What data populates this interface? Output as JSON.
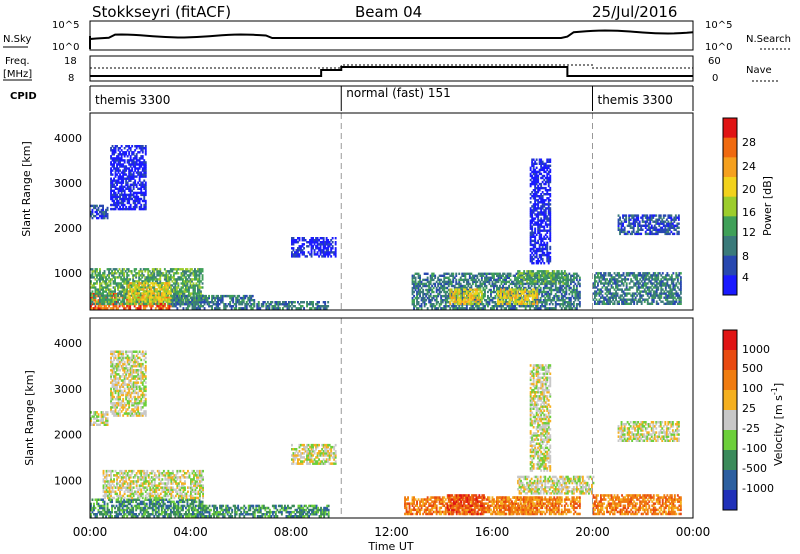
{
  "header": {
    "station": "Stokkseyri (fitACF)",
    "beam": "Beam 04",
    "date": "25/Jul/2016"
  },
  "noise_panel": {
    "left_label": "N.Sky",
    "right_label": "N.Search",
    "left_ticks": [
      "10^5",
      "10^0"
    ],
    "right_ticks": [
      "10^5",
      "10^0"
    ]
  },
  "freq_panel": {
    "left_label_line1": "Freq.",
    "left_label_line2": "[MHz]",
    "left_ticks": [
      "18",
      "8"
    ],
    "right_label": "Nave",
    "right_ticks": [
      "60",
      "0"
    ]
  },
  "cpid": {
    "label": "CPID",
    "segments": [
      {
        "name": "themis 3300",
        "start_hour": 0,
        "end_hour": 10
      },
      {
        "name": "normal (fast) 151",
        "start_hour": 10,
        "end_hour": 20
      },
      {
        "name": "themis 3300",
        "start_hour": 20,
        "end_hour": 24
      }
    ]
  },
  "x_axis": {
    "label": "Time UT",
    "ticks": [
      "00:00",
      "04:00",
      "08:00",
      "12:00",
      "16:00",
      "20:00",
      "00:00"
    ],
    "range_hours": [
      0,
      24
    ]
  },
  "power_panel": {
    "ylabel": "Slant Range [km]",
    "yticks": [
      "1000",
      "2000",
      "3000",
      "4000"
    ],
    "cbar_label": "Power [dB]",
    "cbar_ticks": [
      "4",
      "8",
      "12",
      "16",
      "20",
      "24",
      "28"
    ],
    "cbar_colors": [
      "#1a1aff",
      "#2848b0",
      "#3a7a7a",
      "#3fa058",
      "#9ccd2c",
      "#f2d21c",
      "#f5a01e",
      "#f06a10",
      "#e01414"
    ]
  },
  "velocity_panel": {
    "ylabel": "Slant Range [km]",
    "yticks": [
      "1000",
      "2000",
      "3000",
      "4000"
    ],
    "cbar_label": "Velocity [m s",
    "cbar_label_sup": "-1",
    "cbar_label_end": "]",
    "cbar_ticks": [
      "1000",
      "500",
      "100",
      "25",
      "-25",
      "-100",
      "-500",
      "-1000"
    ],
    "cbar_colors": [
      "#2030b8",
      "#2c5fa0",
      "#3a8a5a",
      "#6ccf3a",
      "#c8c8c8",
      "#f5b020",
      "#f07c10",
      "#e84a10",
      "#e01414"
    ]
  },
  "chart_data": {
    "type": "heatmap",
    "y_range_km": [
      180,
      4550
    ],
    "x_range_hours": [
      0,
      24
    ],
    "mode_change_hours": [
      10,
      20
    ],
    "power_regions": [
      {
        "t0": 0.0,
        "t1": 3.2,
        "r0": 200,
        "r1": 520,
        "level": 7
      },
      {
        "t0": 0.0,
        "t1": 4.5,
        "r0": 300,
        "r1": 1100,
        "level": 3
      },
      {
        "t0": 1.5,
        "t1": 3.2,
        "r0": 350,
        "r1": 800,
        "level": 5
      },
      {
        "t0": 3.2,
        "t1": 6.5,
        "r0": 200,
        "r1": 500,
        "level": 2
      },
      {
        "t0": 6.5,
        "t1": 9.5,
        "r0": 200,
        "r1": 350,
        "level": 2
      },
      {
        "t0": 0.0,
        "t1": 0.7,
        "r0": 2200,
        "r1": 2500,
        "level": 1
      },
      {
        "t0": 0.8,
        "t1": 2.2,
        "r0": 2400,
        "r1": 3800,
        "level": 0
      },
      {
        "t0": 8.0,
        "t1": 9.8,
        "r0": 1350,
        "r1": 1800,
        "level": 0
      },
      {
        "t0": 12.8,
        "t1": 19.5,
        "r0": 200,
        "r1": 1000,
        "level": 2
      },
      {
        "t0": 14.3,
        "t1": 15.6,
        "r0": 300,
        "r1": 650,
        "level": 5
      },
      {
        "t0": 16.2,
        "t1": 17.8,
        "r0": 300,
        "r1": 650,
        "level": 5
      },
      {
        "t0": 17.0,
        "t1": 19.0,
        "r0": 750,
        "r1": 1050,
        "level": 3
      },
      {
        "t0": 20.0,
        "t1": 23.5,
        "r0": 300,
        "r1": 1000,
        "level": 2
      },
      {
        "t0": 21.0,
        "t1": 23.4,
        "r0": 1850,
        "r1": 2300,
        "level": 1
      },
      {
        "t0": 17.5,
        "t1": 18.3,
        "r0": 1200,
        "r1": 3500,
        "level": 0
      }
    ],
    "velocity_regions": [
      {
        "t0": 0.0,
        "t1": 4.5,
        "r0": 200,
        "r1": 600,
        "level": 2
      },
      {
        "t0": 0.5,
        "t1": 4.5,
        "r0": 600,
        "r1": 1200,
        "level": 4
      },
      {
        "t0": 4.0,
        "t1": 9.5,
        "r0": 200,
        "r1": 450,
        "level": 2
      },
      {
        "t0": 0.0,
        "t1": 0.7,
        "r0": 2200,
        "r1": 2500,
        "level": 4
      },
      {
        "t0": 0.8,
        "t1": 2.2,
        "r0": 2400,
        "r1": 3800,
        "level": 4
      },
      {
        "t0": 8.0,
        "t1": 9.8,
        "r0": 1350,
        "r1": 1800,
        "level": 4
      },
      {
        "t0": 12.5,
        "t1": 19.5,
        "r0": 250,
        "r1": 650,
        "level": 6
      },
      {
        "t0": 14.2,
        "t1": 15.7,
        "r0": 250,
        "r1": 700,
        "level": 7
      },
      {
        "t0": 16.2,
        "t1": 17.8,
        "r0": 250,
        "r1": 650,
        "level": 6
      },
      {
        "t0": 17.0,
        "t1": 20.0,
        "r0": 700,
        "r1": 1100,
        "level": 4
      },
      {
        "t0": 20.0,
        "t1": 23.5,
        "r0": 250,
        "r1": 700,
        "level": 6
      },
      {
        "t0": 21.0,
        "t1": 23.4,
        "r0": 1850,
        "r1": 2300,
        "level": 4
      },
      {
        "t0": 17.5,
        "t1": 18.3,
        "r0": 1200,
        "r1": 3500,
        "level": 4
      }
    ]
  }
}
